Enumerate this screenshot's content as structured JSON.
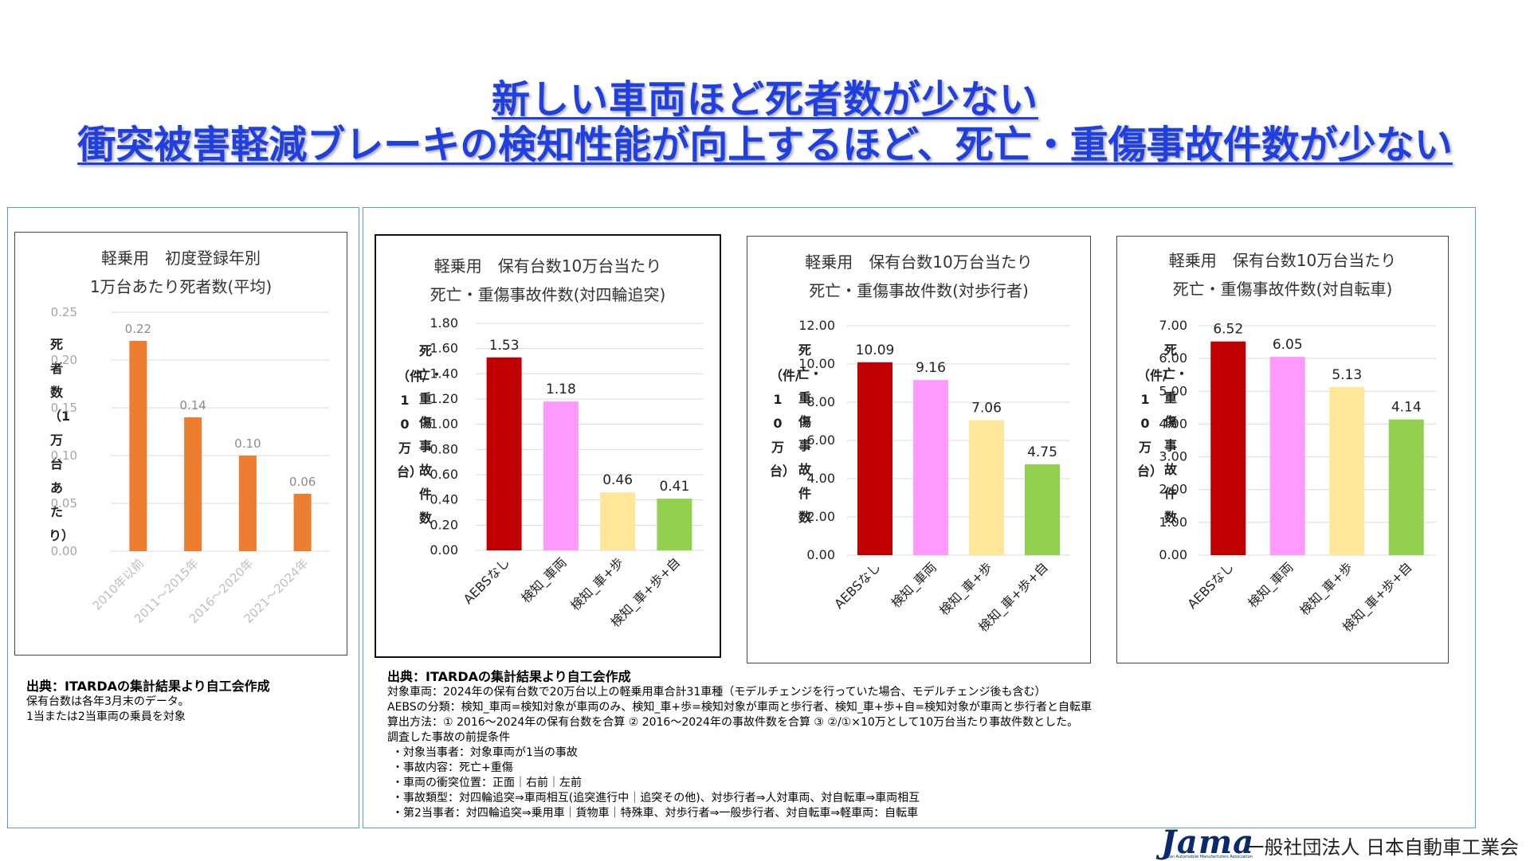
{
  "header": {
    "title1": "新しい車両ほど死者数が少ない",
    "title2": "衝突被害軽減ブレーキの検知性能が向上するほど、死亡・重傷事故件数が少ない"
  },
  "chart_data": [
    {
      "id": "c1",
      "type": "bar",
      "title": [
        "軽乗用　初度登録年別",
        "1万台あたり死者数(平均)"
      ],
      "ylabel": "死者数（1万台あたり）",
      "categories": [
        "2010年以前",
        "2011～2015年",
        "2016～2020年",
        "2021～2024年"
      ],
      "values": [
        0.22,
        0.14,
        0.1,
        0.06
      ],
      "value_labels": [
        "0.22",
        "0.14",
        "0.10",
        "0.06"
      ],
      "ylim": [
        0,
        0.25
      ],
      "yticks": [
        "0.00",
        "0.05",
        "0.10",
        "0.15",
        "0.20",
        "0.25"
      ],
      "colors": [
        "#ed7d31"
      ],
      "grid": true
    },
    {
      "id": "c2",
      "type": "bar",
      "title": [
        "軽乗用　保有台数10万台当たり",
        "死亡・重傷事故件数(対四輪追突)"
      ],
      "ylabel_units": "（件/10万台）",
      "ylabel": "死亡・重傷事故件数",
      "categories": [
        "AEBSなし",
        "検知_車両",
        "検知_車+歩",
        "検知_車+歩+自"
      ],
      "values": [
        1.53,
        1.18,
        0.46,
        0.41
      ],
      "value_labels": [
        "1.53",
        "1.18",
        "0.46",
        "0.41"
      ],
      "ylim": [
        0,
        1.8
      ],
      "yticks": [
        "0.00",
        "0.20",
        "0.40",
        "0.60",
        "0.80",
        "1.00",
        "1.20",
        "1.40",
        "1.60",
        "1.80"
      ],
      "colors": [
        "#c00000",
        "#ff99ff",
        "#ffe699",
        "#92d050"
      ],
      "grid": true
    },
    {
      "id": "c3",
      "type": "bar",
      "title": [
        "軽乗用　保有台数10万台当たり",
        "死亡・重傷事故件数(対歩行者)"
      ],
      "ylabel_units": "（件/10万台）",
      "ylabel": "死亡・重傷事故件数",
      "categories": [
        "AEBSなし",
        "検知_車両",
        "検知_車+歩",
        "検知_車+歩+自"
      ],
      "values": [
        10.09,
        9.16,
        7.06,
        4.75
      ],
      "value_labels": [
        "10.09",
        "9.16",
        "7.06",
        "4.75"
      ],
      "ylim": [
        0,
        12
      ],
      "yticks": [
        "0.00",
        "2.00",
        "4.00",
        "6.00",
        "8.00",
        "10.00",
        "12.00"
      ],
      "colors": [
        "#c00000",
        "#ff99ff",
        "#ffe699",
        "#92d050"
      ],
      "grid": true
    },
    {
      "id": "c4",
      "type": "bar",
      "title": [
        "軽乗用　保有台数10万台当たり",
        "死亡・重傷事故件数(対自転車)"
      ],
      "ylabel_units": "（件/10万台）",
      "ylabel": "死亡・重傷事故件数",
      "categories": [
        "AEBSなし",
        "検知_車両",
        "検知_車+歩",
        "検知_車+歩+自"
      ],
      "values": [
        6.52,
        6.05,
        5.13,
        4.14
      ],
      "value_labels": [
        "6.52",
        "6.05",
        "5.13",
        "4.14"
      ],
      "ylim": [
        0,
        7
      ],
      "yticks": [
        "0.00",
        "1.00",
        "2.00",
        "3.00",
        "4.00",
        "5.00",
        "6.00",
        "7.00"
      ],
      "colors": [
        "#c00000",
        "#ff99ff",
        "#ffe699",
        "#92d050"
      ],
      "grid": true
    }
  ],
  "notes_left": {
    "source": "出典：ITARDAの集計結果より自工会作成",
    "line1": "保有台数は各年3月末のデータ。",
    "line2": "1当または2当車両の乗員を対象"
  },
  "notes_right": {
    "source": "出典：ITARDAの集計結果より自工会作成",
    "lines": [
      "対象車両：2024年の保有台数で20万台以上の軽乗用車合計31車種（モデルチェンジを行っていた場合、モデルチェンジ後も含む）",
      "AEBSの分類：検知_車両=検知対象が車両のみ、検知_車+歩=検知対象が車両と歩行者、検知_車+歩+自=検知対象が車両と歩行者と自転車",
      "算出方法：① 2016～2024年の保有台数を合算 ② 2016～2024年の事故件数を合算 ③ ②/①×10万として10万台当たり事故件数とした。",
      "調査した事故の前提条件",
      "・対象当事者：対象車両が1当の事故",
      "・事故内容：死亡+重傷",
      "・車両の衝突位置：正面｜右前｜左前",
      "・事故類型：対四輪追突⇒車両相互(追突進行中｜追突その他)、対歩行者⇒人対車両、対自転車⇒車両相互",
      "・第2当事者：対四輪追突⇒乗用車｜貨物車｜特殊車、対歩行者⇒一般歩行者、対自転車⇒軽車両：自転車"
    ]
  },
  "footer": {
    "logo": "Jama",
    "logo_sub": "Japan Automobile Manufacturers Association",
    "org": "一般社団法人 日本自動車工業会"
  }
}
